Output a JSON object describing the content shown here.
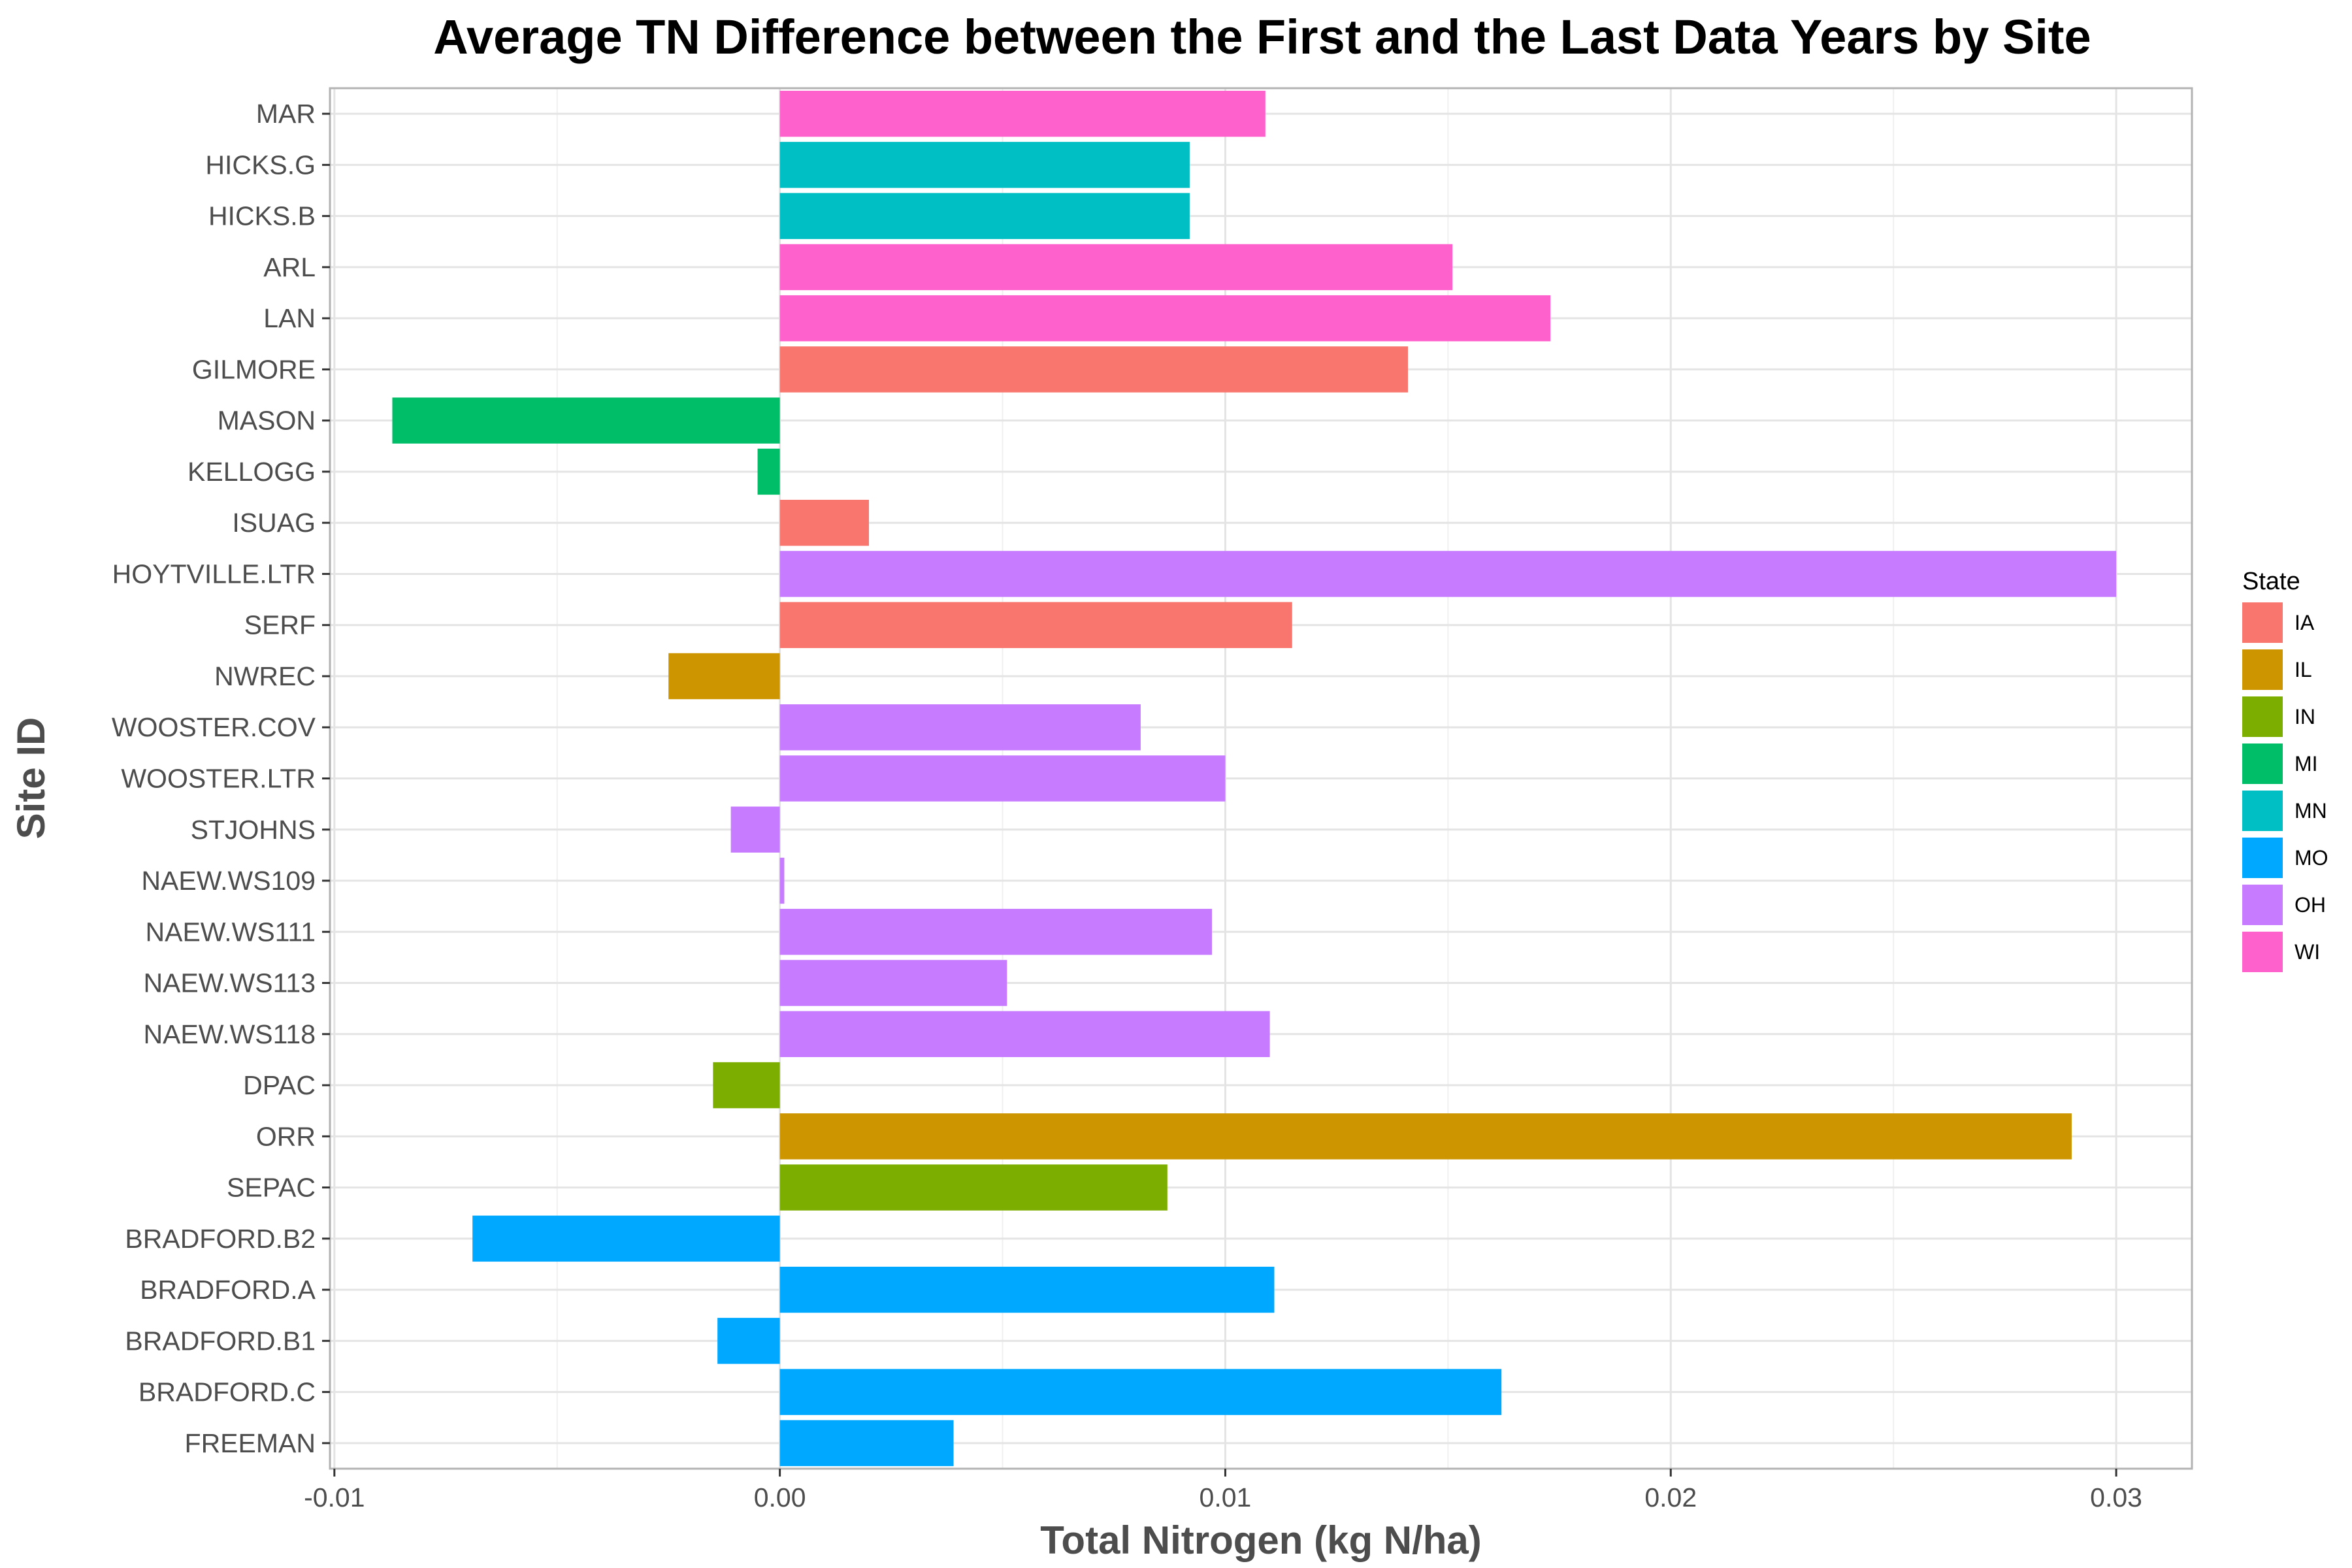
{
  "chart_data": {
    "type": "bar",
    "orientation": "horizontal",
    "title": "Average TN Difference between the First and the Last Data Years by Site",
    "xlabel": "Total Nitrogen (kg N/ha)",
    "ylabel": "Site ID",
    "xlim": [
      -0.0101,
      0.0317
    ],
    "xticks": [
      -0.01,
      0.0,
      0.01,
      0.02,
      0.03
    ],
    "xtick_labels": [
      "-0.01",
      "0.00",
      "0.01",
      "0.02",
      "0.03"
    ],
    "grid": true,
    "legend": {
      "title": "State",
      "placement": "right",
      "entries": [
        {
          "label": "IA",
          "color": "#F8766D"
        },
        {
          "label": "IL",
          "color": "#CD9600"
        },
        {
          "label": "IN",
          "color": "#7CAE00"
        },
        {
          "label": "MI",
          "color": "#00BE67"
        },
        {
          "label": "MN",
          "color": "#00BFC4"
        },
        {
          "label": "MO",
          "color": "#00A9FF"
        },
        {
          "label": "OH",
          "color": "#C77CFF"
        },
        {
          "label": "WI",
          "color": "#FF61CC"
        }
      ]
    },
    "bars": [
      {
        "site": "MAR",
        "value": 0.0109,
        "state": "WI"
      },
      {
        "site": "HICKS.G",
        "value": 0.0092,
        "state": "MN"
      },
      {
        "site": "HICKS.B",
        "value": 0.0092,
        "state": "MN"
      },
      {
        "site": "ARL",
        "value": 0.0151,
        "state": "WI"
      },
      {
        "site": "LAN",
        "value": 0.0173,
        "state": "WI"
      },
      {
        "site": "GILMORE",
        "value": 0.0141,
        "state": "IA"
      },
      {
        "site": "MASON",
        "value": -0.0087,
        "state": "MI"
      },
      {
        "site": "KELLOGG",
        "value": -0.0005,
        "state": "MI"
      },
      {
        "site": "ISUAG",
        "value": 0.002,
        "state": "IA"
      },
      {
        "site": "HOYTVILLE.LTR",
        "value": 0.03,
        "state": "OH"
      },
      {
        "site": "SERF",
        "value": 0.0115,
        "state": "IA"
      },
      {
        "site": "NWREC",
        "value": -0.0025,
        "state": "IL"
      },
      {
        "site": "WOOSTER.COV",
        "value": 0.0081,
        "state": "OH"
      },
      {
        "site": "WOOSTER.LTR",
        "value": 0.01,
        "state": "OH"
      },
      {
        "site": "STJOHNS",
        "value": -0.0011,
        "state": "OH"
      },
      {
        "site": "NAEW.WS109",
        "value": 0.0001,
        "state": "OH"
      },
      {
        "site": "NAEW.WS111",
        "value": 0.0097,
        "state": "OH"
      },
      {
        "site": "NAEW.WS113",
        "value": 0.0051,
        "state": "OH"
      },
      {
        "site": "NAEW.WS118",
        "value": 0.011,
        "state": "OH"
      },
      {
        "site": "DPAC",
        "value": -0.0015,
        "state": "IN"
      },
      {
        "site": "ORR",
        "value": 0.029,
        "state": "IL"
      },
      {
        "site": "SEPAC",
        "value": 0.0087,
        "state": "IN"
      },
      {
        "site": "BRADFORD.B2",
        "value": -0.0069,
        "state": "MO"
      },
      {
        "site": "BRADFORD.A",
        "value": 0.0111,
        "state": "MO"
      },
      {
        "site": "BRADFORD.B1",
        "value": -0.0014,
        "state": "MO"
      },
      {
        "site": "BRADFORD.C",
        "value": 0.0162,
        "state": "MO"
      },
      {
        "site": "FREEMAN",
        "value": 0.0039,
        "state": "MO"
      }
    ]
  }
}
